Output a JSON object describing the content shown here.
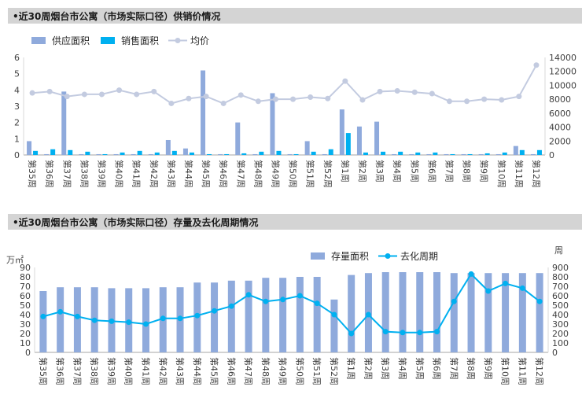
{
  "chart_data": [
    {
      "type": "bar",
      "title": "•近30周烟台市公寓（市场实际口径）供销价情况",
      "categories": [
        "第35周",
        "第36周",
        "第37周",
        "第38周",
        "第39周",
        "第40周",
        "第41周",
        "第42周",
        "第43周",
        "第44周",
        "第45周",
        "第46周",
        "第47周",
        "第48周",
        "第49周",
        "第50周",
        "第51周",
        "第52周",
        "第1周",
        "第2周",
        "第3周",
        "第4周",
        "第5周",
        "第6周",
        "第7周",
        "第8周",
        "第9周",
        "第10周",
        "第11周",
        "第12周"
      ],
      "series": [
        {
          "name": "供应面积",
          "kind": "bar",
          "axis": "left",
          "color": "#8faadc",
          "values": [
            0.85,
            0.05,
            3.9,
            0.05,
            0.05,
            0.05,
            0.05,
            0.05,
            0.92,
            0.4,
            5.2,
            0.05,
            2.0,
            0.05,
            3.8,
            0.05,
            0.85,
            0.05,
            2.8,
            1.75,
            2.05,
            0.05,
            0.05,
            0.05,
            0.05,
            0.05,
            0.05,
            0.05,
            0.55,
            0.05
          ]
        },
        {
          "name": "销售面积",
          "kind": "bar",
          "axis": "left",
          "color": "#00b0f0",
          "values": [
            0.25,
            0.35,
            0.3,
            0.2,
            0.05,
            0.15,
            0.25,
            0.15,
            0.25,
            0.15,
            0.05,
            0.05,
            0.1,
            0.2,
            0.25,
            0.05,
            0.2,
            0.35,
            1.35,
            0.15,
            0.2,
            0.2,
            0.15,
            0.15,
            0.05,
            0.05,
            0.1,
            0.15,
            0.3,
            0.3
          ]
        },
        {
          "name": "均价",
          "kind": "line",
          "axis": "right",
          "color": "#c3cbe0",
          "values": [
            8900,
            9100,
            8400,
            8700,
            8700,
            9300,
            8700,
            9100,
            7400,
            8100,
            8400,
            7400,
            8600,
            7700,
            8000,
            8000,
            8300,
            8100,
            10600,
            7900,
            9100,
            9200,
            9000,
            8800,
            7700,
            7700,
            8000,
            7900,
            8400,
            12900
          ]
        }
      ],
      "ylim_left": [
        0,
        6
      ],
      "yticks_left": [
        0,
        1,
        2,
        3,
        4,
        5,
        6
      ],
      "ylim_right": [
        0,
        14000
      ],
      "yticks_right": [
        0,
        2000,
        4000,
        6000,
        8000,
        10000,
        12000,
        14000
      ],
      "legend": "top-left",
      "grid": false
    },
    {
      "type": "bar",
      "title": "•近30周烟台市公寓（市场实际口径）存量及去化周期情况",
      "left_unit": "万㎡",
      "right_unit": "周",
      "categories": [
        "第35周",
        "第36周",
        "第37周",
        "第38周",
        "第39周",
        "第40周",
        "第41周",
        "第42周",
        "第43周",
        "第44周",
        "第45周",
        "第46周",
        "第47周",
        "第48周",
        "第49周",
        "第50周",
        "第51周",
        "第52周",
        "第1周",
        "第2周",
        "第3周",
        "第4周",
        "第5周",
        "第6周",
        "第7周",
        "第8周",
        "第9周",
        "第10周",
        "第11周",
        "第12周"
      ],
      "series": [
        {
          "name": "存量面积",
          "kind": "bar",
          "axis": "left",
          "color": "#8faadc",
          "values": [
            65,
            69,
            69,
            69,
            68,
            68,
            68,
            69,
            69,
            74,
            74,
            76,
            76,
            79,
            79,
            80,
            80,
            56,
            82,
            84,
            85,
            85,
            85,
            85,
            84,
            84,
            84,
            84,
            84,
            84
          ]
        },
        {
          "name": "去化周期",
          "kind": "line",
          "axis": "right",
          "color": "#00b0f0",
          "values": [
            380,
            430,
            380,
            340,
            330,
            320,
            300,
            360,
            360,
            390,
            440,
            490,
            610,
            540,
            560,
            600,
            520,
            400,
            200,
            400,
            220,
            210,
            210,
            220,
            540,
            830,
            650,
            730,
            680,
            540
          ]
        }
      ],
      "ylim_left": [
        0,
        90
      ],
      "yticks_left": [
        0,
        10,
        20,
        30,
        40,
        50,
        60,
        70,
        80,
        90
      ],
      "ylim_right": [
        0,
        900
      ],
      "yticks_right": [
        0,
        100,
        200,
        300,
        400,
        500,
        600,
        700,
        800,
        900
      ],
      "legend": "top-center",
      "grid": false
    }
  ]
}
